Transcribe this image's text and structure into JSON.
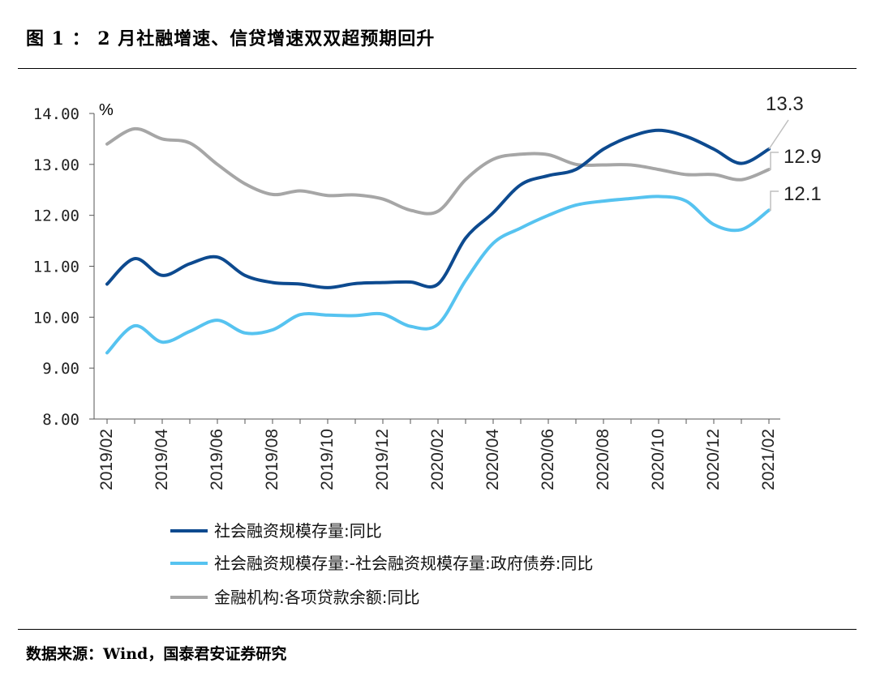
{
  "figure": {
    "title": "图 1 ： 2 月社融增速、信贷增速双双超预期回升",
    "source": "数据来源：Wind，国泰君安证券研究"
  },
  "chart_data": {
    "type": "line",
    "unit": "%",
    "ylim": [
      8,
      14
    ],
    "yticks": [
      "8.00",
      "9.00",
      "10.00",
      "11.00",
      "12.00",
      "13.00",
      "14.00"
    ],
    "xticks": [
      "2019/02",
      "2019/04",
      "2019/06",
      "2019/08",
      "2019/10",
      "2019/12",
      "2020/02",
      "2020/04",
      "2020/06",
      "2020/08",
      "2020/10",
      "2020/12",
      "2021/02"
    ],
    "x": [
      "2019/02",
      "2019/03",
      "2019/04",
      "2019/05",
      "2019/06",
      "2019/07",
      "2019/08",
      "2019/09",
      "2019/10",
      "2019/11",
      "2019/12",
      "2020/01",
      "2020/02",
      "2020/03",
      "2020/04",
      "2020/05",
      "2020/06",
      "2020/07",
      "2020/08",
      "2020/09",
      "2020/10",
      "2020/11",
      "2020/12",
      "2021/01",
      "2021/02"
    ],
    "grid": false,
    "legend_position": "bottom",
    "series": [
      {
        "name": "社会融资规模存量:同比",
        "color": "#0D4A8F",
        "values": [
          10.65,
          11.15,
          10.82,
          11.05,
          11.18,
          10.82,
          10.68,
          10.65,
          10.58,
          10.66,
          10.68,
          10.69,
          10.65,
          11.55,
          12.05,
          12.6,
          12.78,
          12.9,
          13.3,
          13.55,
          13.67,
          13.55,
          13.3,
          13.02,
          13.3
        ],
        "end_label": "13.3"
      },
      {
        "name": "社会融资规模存量:-社会融资规模存量:政府债券:同比",
        "color": "#56C3F0",
        "values": [
          9.3,
          9.83,
          9.51,
          9.72,
          9.94,
          9.69,
          9.75,
          10.05,
          10.04,
          10.03,
          10.06,
          9.82,
          9.86,
          10.72,
          11.45,
          11.75,
          12.0,
          12.2,
          12.28,
          12.33,
          12.37,
          12.28,
          11.82,
          11.72,
          12.1
        ],
        "end_label": "12.1"
      },
      {
        "name": "金融机构:各项贷款余额:同比",
        "color": "#A6A6A6",
        "values": [
          13.4,
          13.7,
          13.5,
          13.42,
          13.0,
          12.62,
          12.41,
          12.48,
          12.39,
          12.4,
          12.32,
          12.1,
          12.08,
          12.7,
          13.1,
          13.2,
          13.19,
          13.0,
          12.99,
          12.99,
          12.9,
          12.8,
          12.8,
          12.7,
          12.9
        ],
        "end_label": "12.9"
      }
    ]
  }
}
